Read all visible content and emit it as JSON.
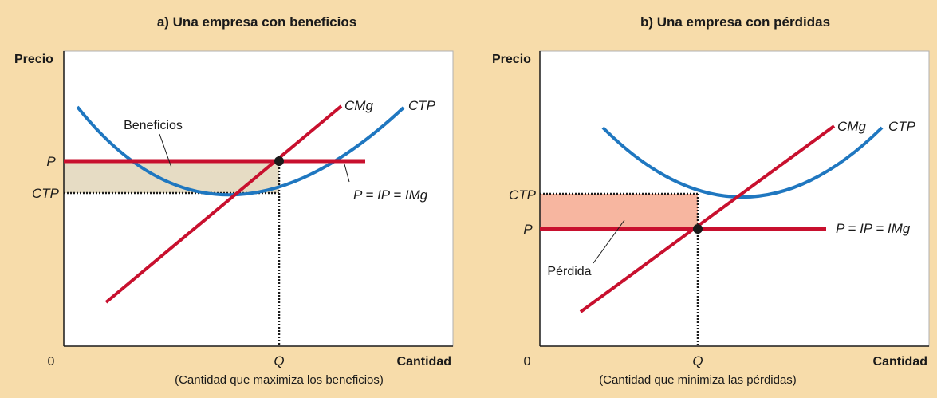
{
  "panel_a": {
    "title": "a) Una empresa con beneficios",
    "y_axis_label": "Precio",
    "x_axis_label": "Cantidad",
    "origin_label": "0",
    "price_label": "P",
    "atc_level_label": "CTP",
    "quantity_label": "Q",
    "quantity_note": "(Cantidad que maximiza los beneficios)",
    "area_label": "Beneficios",
    "mc_label": "CMg",
    "atc_label": "CTP",
    "price_line_label": "P = IP = IMg"
  },
  "panel_b": {
    "title": "b) Una empresa con pérdidas",
    "y_axis_label": "Precio",
    "x_axis_label": "Cantidad",
    "origin_label": "0",
    "price_label": "P",
    "atc_level_label": "CTP",
    "quantity_label": "Q",
    "quantity_note": "(Cantidad que minimiza las pérdidas)",
    "area_label": "Pérdida",
    "mc_label": "CMg",
    "atc_label": "CTP",
    "price_line_label": "P = IP = IMg"
  },
  "colors": {
    "background": "#f7dcaa",
    "plot_area": "#ffffff",
    "mc_line": "#c8102e",
    "price_line": "#c8102e",
    "atc_curve": "#1f77c0",
    "profit_area": "#e6dcc4",
    "loss_area": "#f7b6a0"
  }
}
